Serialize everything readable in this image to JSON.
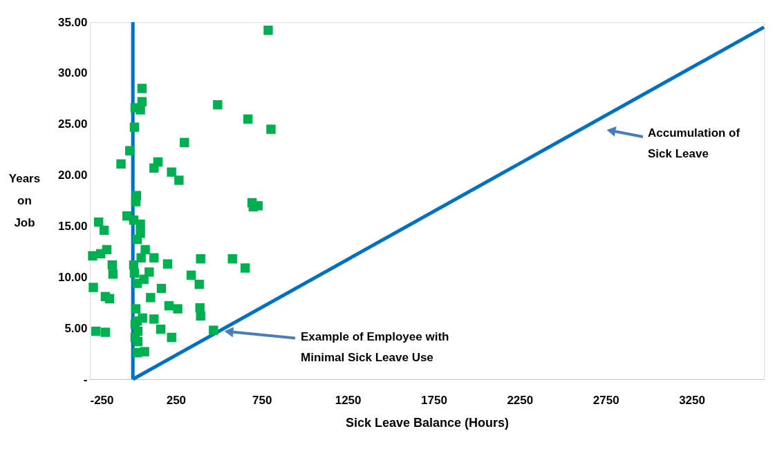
{
  "chart_data": {
    "type": "scatter",
    "xlabel": "Sick Leave Balance (Hours)",
    "ylabel": "Years on Job",
    "xlim": [
      -250,
      3670
    ],
    "ylim": [
      0,
      35
    ],
    "xticks": [
      -250,
      250,
      750,
      1250,
      1750,
      2250,
      2750,
      3250
    ],
    "yticks": [
      {
        "value": 0,
        "label": "-"
      },
      {
        "value": 5,
        "label": "5.00"
      },
      {
        "value": 10,
        "label": "10.00"
      },
      {
        "value": 15,
        "label": "15.00"
      },
      {
        "value": 20,
        "label": "20.00"
      },
      {
        "value": 25,
        "label": "25.00"
      },
      {
        "value": 30,
        "label": "30.00"
      },
      {
        "value": 35,
        "label": "35.00"
      }
    ],
    "grid": false,
    "marker": "square",
    "series": [
      {
        "type": "line",
        "color": "#0070c0",
        "line_style": "solid",
        "marker": "none",
        "x": [
          0,
          0
        ],
        "values": [
          0,
          35
        ]
      },
      {
        "type": "line",
        "color": "#0070c0",
        "line_style": "solid",
        "marker": "none",
        "x": [
          0,
          3670
        ],
        "values": [
          0,
          34.5
        ]
      },
      {
        "color": "#00b050",
        "x": [
          787,
          53,
          53,
          13,
          44,
          493,
          669,
          803,
          9,
          300,
          -18,
          -69,
          146,
          123,
          225,
          268,
          21,
          17,
          693,
          728,
          700,
          -34,
          -199,
          -167,
          5,
          44,
          44,
          25,
          72,
          -152,
          -187,
          -234,
          48,
          123,
          394,
          579,
          202,
          -120,
          -116,
          5,
          9,
          95,
          64,
          25,
          653,
          339,
          386,
          -230,
          -160,
          -136,
          166,
          103,
          17,
          56,
          25,
          29,
          29,
          25,
          210,
          261,
          390,
          394,
          123,
          162,
          225,
          469,
          -215,
          -160,
          68,
          13,
          13
        ],
        "values": [
          34.2,
          28.5,
          27.2,
          26.6,
          26.4,
          26.9,
          25.5,
          24.5,
          24.7,
          23.2,
          22.4,
          21.1,
          21.3,
          20.7,
          20.3,
          19.5,
          18.0,
          17.4,
          17.3,
          17.0,
          16.9,
          16.0,
          15.4,
          14.6,
          15.6,
          15.2,
          14.3,
          13.7,
          12.7,
          12.7,
          12.3,
          12.1,
          11.9,
          11.9,
          11.8,
          11.8,
          11.3,
          11.2,
          10.3,
          11.2,
          10.4,
          10.5,
          9.8,
          9.4,
          10.9,
          10.2,
          9.3,
          9.0,
          8.1,
          7.9,
          8.9,
          8.0,
          6.9,
          6.0,
          5.7,
          4.7,
          3.7,
          2.6,
          7.2,
          6.9,
          7.0,
          6.2,
          5.9,
          4.9,
          4.1,
          4.8,
          4.7,
          4.6,
          2.7,
          5.4,
          4.1
        ]
      }
    ],
    "annotations": [
      "Accumulation of\nSick Leave",
      {
        "text": "Example of Employee with\nMinimal Sick Leave Use",
        "x": 534,
        "y": 4.7
      }
    ]
  }
}
